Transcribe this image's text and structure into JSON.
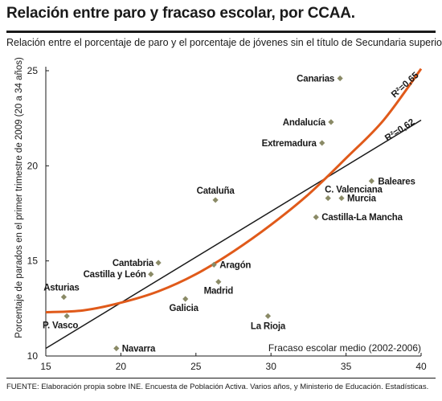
{
  "title": "Relación entre paro y fracaso escolar, por CCAA.",
  "subtitle": "Relación entre el porcentaje de paro y el porcentaje de jóvenes sin el título de Secundaria superior.",
  "footer": "FUENTE: Elaboración propia sobre INE. Encuesta de Población Activa. Varios años, y Ministerio de Educación. Estadísticas.",
  "colors": {
    "points": "#8a8a66",
    "linear": "#1a1a1a",
    "poly": "#e05a1a",
    "axis": "#1a1a1a"
  },
  "chart_data": {
    "type": "scatter",
    "xlabel": "Fracaso escolar medio (2002-2006)",
    "ylabel": "Porcentaje de parados en el primer trimestre de 2009 (20 a 34 años)",
    "xlim": [
      15,
      40
    ],
    "ylim": [
      10,
      25
    ],
    "xticks": [
      15,
      20,
      25,
      30,
      35,
      40
    ],
    "yticks": [
      10,
      15,
      20,
      25
    ],
    "grid": false,
    "points": [
      {
        "label": "Canarias",
        "x": 34.6,
        "y": 24.6
      },
      {
        "label": "Andalucía",
        "x": 34.0,
        "y": 22.3
      },
      {
        "label": "Extremadura",
        "x": 33.4,
        "y": 21.2
      },
      {
        "label": "Baleares",
        "x": 36.7,
        "y": 19.2
      },
      {
        "label": "C. Valenciana",
        "x": 33.8,
        "y": 18.3
      },
      {
        "label": "Murcia",
        "x": 34.7,
        "y": 18.3
      },
      {
        "label": "Castilla-La Mancha",
        "x": 33.0,
        "y": 17.3
      },
      {
        "label": "Cataluña",
        "x": 26.3,
        "y": 18.2
      },
      {
        "label": "Cantabria",
        "x": 22.5,
        "y": 14.9
      },
      {
        "label": "Castilla y León",
        "x": 22.0,
        "y": 14.3
      },
      {
        "label": "Aragón",
        "x": 26.2,
        "y": 14.8
      },
      {
        "label": "Madrid",
        "x": 26.5,
        "y": 13.9
      },
      {
        "label": "Galicia",
        "x": 24.3,
        "y": 13.0
      },
      {
        "label": "Asturias",
        "x": 16.2,
        "y": 13.1
      },
      {
        "label": "P. Vasco",
        "x": 16.4,
        "y": 12.1
      },
      {
        "label": "La Rioja",
        "x": 29.8,
        "y": 12.1
      },
      {
        "label": "Navarra",
        "x": 19.7,
        "y": 10.4
      }
    ],
    "trendlines": [
      {
        "name": "R²=0,62",
        "kind": "linear",
        "x": [
          15,
          40
        ],
        "y": [
          10.4,
          22.4
        ]
      },
      {
        "name": "R²=0,65",
        "kind": "polynomial",
        "x": [
          15,
          17.5,
          20,
          22.5,
          25,
          27.5,
          30,
          32.5,
          35,
          37.5,
          40
        ],
        "y": [
          12.3,
          12.4,
          12.8,
          13.4,
          14.3,
          15.5,
          16.9,
          18.5,
          20.4,
          22.4,
          25.1
        ]
      }
    ]
  }
}
